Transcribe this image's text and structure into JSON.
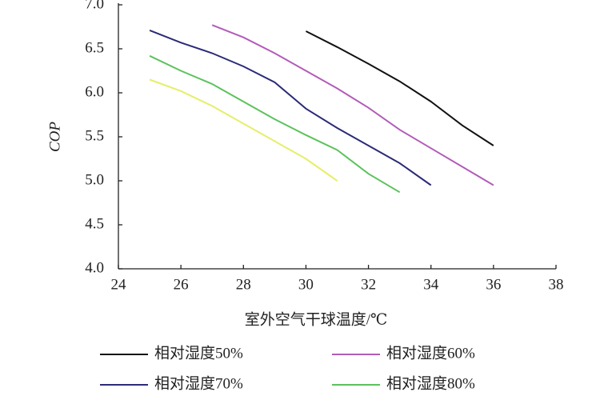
{
  "chart_data": {
    "type": "line",
    "xlabel": "室外空气干球温度/℃",
    "ylabel": "COP",
    "xlim": [
      24,
      38
    ],
    "xticks": [
      24,
      26,
      28,
      30,
      32,
      34,
      36,
      38
    ],
    "ylim": [
      4,
      7
    ],
    "yticks": [
      {
        "value": 4,
        "label": "4.0"
      },
      4.5,
      {
        "value": 5,
        "label": "5.0"
      },
      5.5,
      {
        "value": 6,
        "label": "6.0"
      },
      6.5,
      {
        "value": 7,
        "label": "7.0"
      }
    ],
    "series": [
      {
        "name": "相对湿度50%",
        "color": "#111111",
        "x": [
          30,
          31,
          32,
          33,
          34,
          35,
          36
        ],
        "values": [
          6.7,
          6.52,
          6.33,
          6.13,
          5.9,
          5.63,
          5.4
        ]
      },
      {
        "name": "相对湿度60%",
        "color": "#b25cb8",
        "x": [
          27,
          28,
          29,
          30,
          31,
          32,
          33,
          34,
          35,
          36
        ],
        "values": [
          6.77,
          6.63,
          6.45,
          6.25,
          6.05,
          5.83,
          5.58,
          5.37,
          5.16,
          4.95
        ]
      },
      {
        "name": "相对湿度70%",
        "color": "#2b2b78",
        "x": [
          25,
          26,
          27,
          28,
          29,
          30,
          31,
          32,
          33,
          34
        ],
        "values": [
          6.71,
          6.57,
          6.45,
          6.3,
          6.12,
          5.82,
          5.6,
          5.4,
          5.2,
          4.95
        ]
      },
      {
        "name": "相对湿度80%",
        "color": "#5cc25c",
        "x": [
          25,
          26,
          27,
          28,
          29,
          30,
          31,
          32,
          33
        ],
        "values": [
          6.42,
          6.25,
          6.1,
          5.9,
          5.7,
          5.52,
          5.35,
          5.08,
          4.87
        ]
      },
      {
        "color": "#e6ee6a",
        "x": [
          25,
          26,
          27,
          28,
          29,
          30,
          31
        ],
        "values": [
          6.15,
          6.02,
          5.85,
          5.65,
          5.45,
          5.25,
          5.0
        ]
      }
    ]
  }
}
